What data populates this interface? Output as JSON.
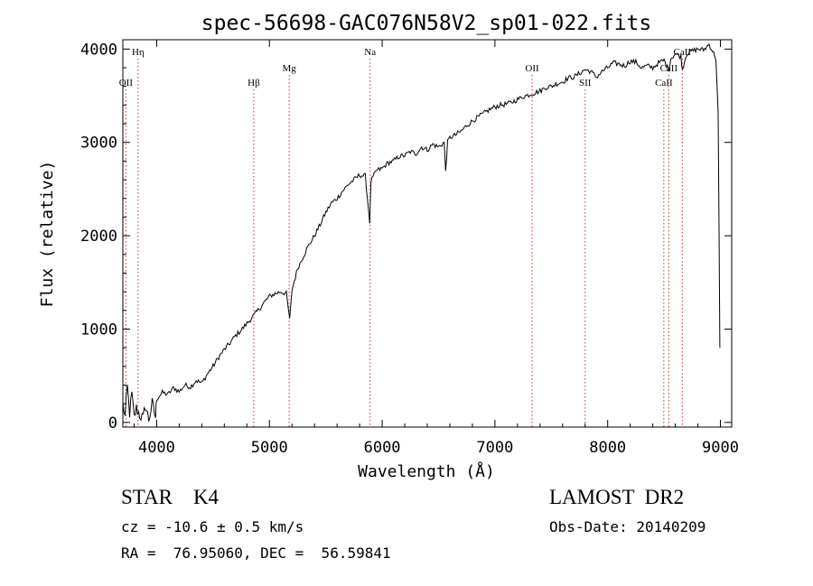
{
  "chart_data": {
    "type": "line",
    "title": "spec-56698-GAC076N58V2_sp01-022.fits",
    "xlabel": "Wavelength (Å)",
    "ylabel": "Flux (relative)",
    "xlim": [
      3700,
      9100
    ],
    "ylim": [
      -50,
      4100
    ],
    "xticks": [
      4000,
      5000,
      6000,
      7000,
      8000,
      9000
    ],
    "yticks": [
      0,
      1000,
      2000,
      3000,
      4000
    ],
    "grid": false,
    "series": [
      {
        "color": "#000000",
        "points": [
          [
            3700,
            200
          ],
          [
            3720,
            60
          ],
          [
            3740,
            380
          ],
          [
            3760,
            100
          ],
          [
            3780,
            300
          ],
          [
            3800,
            50
          ],
          [
            3820,
            150
          ],
          [
            3850,
            80
          ],
          [
            3880,
            40
          ],
          [
            3900,
            180
          ],
          [
            3930,
            30
          ],
          [
            3960,
            200
          ],
          [
            3990,
            60
          ],
          [
            4000,
            250
          ],
          [
            4050,
            320
          ],
          [
            4100,
            300
          ],
          [
            4150,
            370
          ],
          [
            4200,
            330
          ],
          [
            4250,
            400
          ],
          [
            4300,
            380
          ],
          [
            4350,
            450
          ],
          [
            4400,
            420
          ],
          [
            4450,
            520
          ],
          [
            4500,
            600
          ],
          [
            4550,
            700
          ],
          [
            4600,
            780
          ],
          [
            4650,
            850
          ],
          [
            4700,
            930
          ],
          [
            4750,
            990
          ],
          [
            4800,
            1060
          ],
          [
            4850,
            1130
          ],
          [
            4900,
            1200
          ],
          [
            4950,
            1280
          ],
          [
            5000,
            1350
          ],
          [
            5050,
            1380
          ],
          [
            5100,
            1400
          ],
          [
            5150,
            1380
          ],
          [
            5180,
            1100
          ],
          [
            5200,
            1420
          ],
          [
            5250,
            1650
          ],
          [
            5300,
            1780
          ],
          [
            5350,
            1900
          ],
          [
            5400,
            2000
          ],
          [
            5450,
            2120
          ],
          [
            5500,
            2250
          ],
          [
            5550,
            2350
          ],
          [
            5600,
            2400
          ],
          [
            5650,
            2480
          ],
          [
            5700,
            2550
          ],
          [
            5750,
            2600
          ],
          [
            5800,
            2650
          ],
          [
            5850,
            2640
          ],
          [
            5890,
            2150
          ],
          [
            5900,
            2580
          ],
          [
            5950,
            2700
          ],
          [
            6000,
            2720
          ],
          [
            6050,
            2780
          ],
          [
            6100,
            2800
          ],
          [
            6150,
            2850
          ],
          [
            6200,
            2860
          ],
          [
            6250,
            2900
          ],
          [
            6300,
            2880
          ],
          [
            6350,
            2950
          ],
          [
            6400,
            2920
          ],
          [
            6450,
            2980
          ],
          [
            6500,
            2950
          ],
          [
            6550,
            3000
          ],
          [
            6563,
            2700
          ],
          [
            6580,
            3000
          ],
          [
            6600,
            3050
          ],
          [
            6650,
            3080
          ],
          [
            6700,
            3120
          ],
          [
            6750,
            3180
          ],
          [
            6800,
            3230
          ],
          [
            6850,
            3270
          ],
          [
            6900,
            3310
          ],
          [
            6950,
            3350
          ],
          [
            7000,
            3380
          ],
          [
            7050,
            3400
          ],
          [
            7100,
            3410
          ],
          [
            7150,
            3430
          ],
          [
            7200,
            3460
          ],
          [
            7250,
            3490
          ],
          [
            7300,
            3510
          ],
          [
            7350,
            3530
          ],
          [
            7400,
            3550
          ],
          [
            7450,
            3590
          ],
          [
            7500,
            3600
          ],
          [
            7550,
            3630
          ],
          [
            7600,
            3650
          ],
          [
            7650,
            3690
          ],
          [
            7700,
            3700
          ],
          [
            7750,
            3740
          ],
          [
            7800,
            3780
          ],
          [
            7850,
            3760
          ],
          [
            7900,
            3700
          ],
          [
            7950,
            3760
          ],
          [
            8000,
            3800
          ],
          [
            8050,
            3850
          ],
          [
            8100,
            3840
          ],
          [
            8150,
            3820
          ],
          [
            8200,
            3870
          ],
          [
            8250,
            3860
          ],
          [
            8300,
            3800
          ],
          [
            8350,
            3820
          ],
          [
            8400,
            3800
          ],
          [
            8450,
            3850
          ],
          [
            8500,
            3880
          ],
          [
            8540,
            3780
          ],
          [
            8560,
            3900
          ],
          [
            8600,
            3950
          ],
          [
            8650,
            3920
          ],
          [
            8662,
            3780
          ],
          [
            8700,
            3950
          ],
          [
            8750,
            3980
          ],
          [
            8800,
            4000
          ],
          [
            8850,
            3990
          ],
          [
            8900,
            4050
          ],
          [
            8930,
            3980
          ],
          [
            8960,
            3900
          ],
          [
            8980,
            3300
          ],
          [
            8995,
            800
          ]
        ]
      }
    ],
    "lines": [
      {
        "label": "Hη",
        "x": 3835,
        "tier": 0
      },
      {
        "label": "OII",
        "x": 3727,
        "tier": 1
      },
      {
        "label": "Hβ",
        "x": 4861,
        "tier": 1
      },
      {
        "label": "Mg",
        "x": 5175,
        "tier": 2
      },
      {
        "label": "Na",
        "x": 5893,
        "tier": 0
      },
      {
        "label": "OII",
        "x": 7330,
        "tier": 2
      },
      {
        "label": "SII",
        "x": 7800,
        "tier": 1
      },
      {
        "label": "CaII",
        "x": 8542,
        "tier": 2
      },
      {
        "label": "CaII",
        "x": 8662,
        "tier": 0
      },
      {
        "label": "CaII",
        "x": 8498,
        "tier": 1
      }
    ]
  },
  "footer": {
    "classification": "STAR    K4",
    "survey": "LAMOST  DR2",
    "redshift": "cz = -10.6 ± 0.5 km/s",
    "obs_date": "Obs-Date: 20140209",
    "coords": "RA =  76.95060, DEC =  56.59841"
  }
}
